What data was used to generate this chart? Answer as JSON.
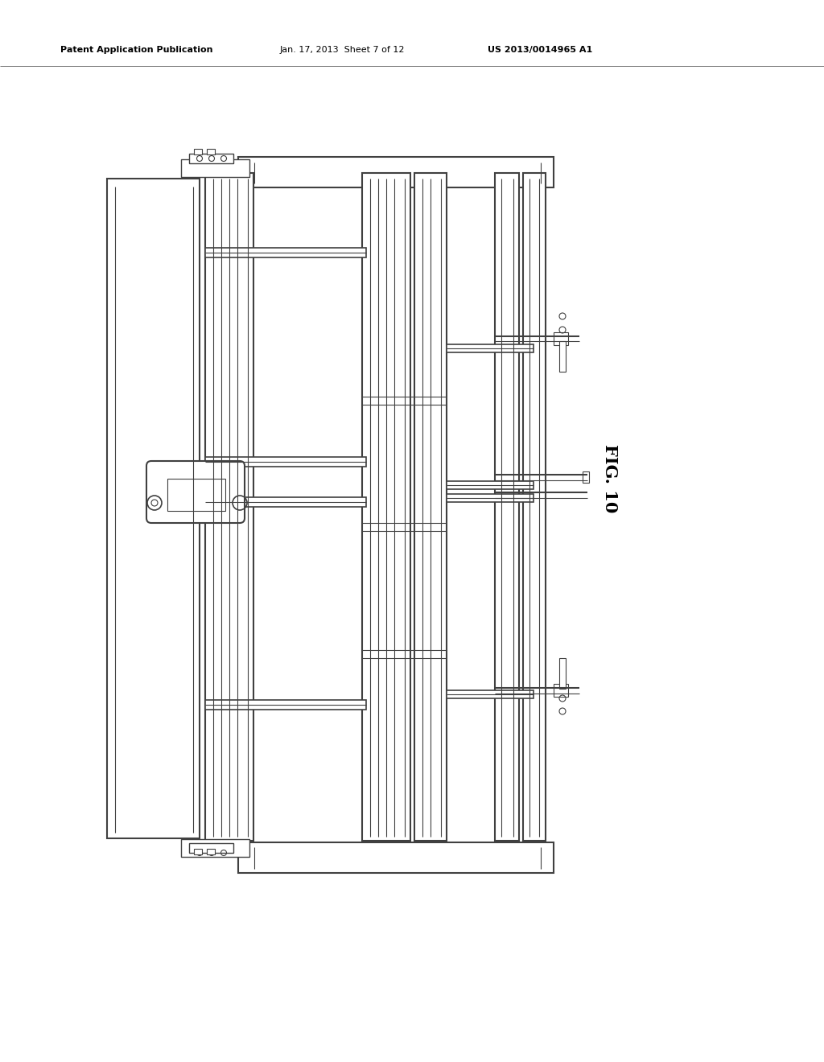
{
  "bg_color": "#ffffff",
  "line_color": "#404040",
  "header_text1": "Patent Application Publication",
  "header_text2": "Jan. 17, 2013  Sheet 7 of 12",
  "header_text3": "US 2013/0014965 A1",
  "fig_label": "FIG. 10"
}
